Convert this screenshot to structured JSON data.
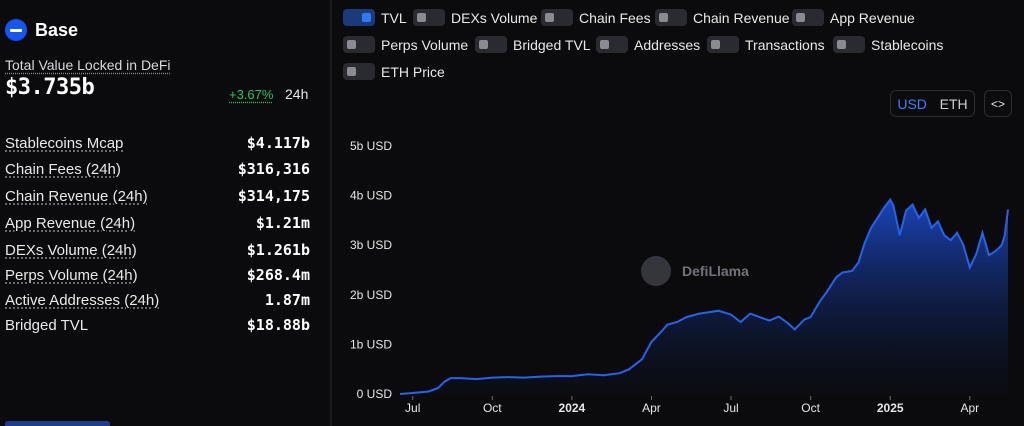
{
  "chain": {
    "name": "Base",
    "logo_icon": "base-logo-icon"
  },
  "tvl": {
    "label": "Total Value Locked in DeFi",
    "value": "$3.735b",
    "change": "+3.67%",
    "period": "24h"
  },
  "stats": [
    {
      "label": "Stablecoins Mcap",
      "value": "$4.117b"
    },
    {
      "label": "Chain Fees (24h)",
      "value": "$316,316"
    },
    {
      "label": "Chain Revenue (24h)",
      "value": "$314,175"
    },
    {
      "label": "App Revenue (24h)",
      "value": "$1.21m"
    },
    {
      "label": "DEXs Volume (24h)",
      "value": "$1.261b"
    },
    {
      "label": "Perps Volume (24h)",
      "value": "$268.4m"
    },
    {
      "label": "Active Addresses (24h)",
      "value": "1.87m"
    },
    {
      "label": "Bridged TVL",
      "value": "$18.88b"
    }
  ],
  "toggles": [
    {
      "label": "TVL",
      "on": true
    },
    {
      "label": "DEXs Volume",
      "on": false
    },
    {
      "label": "Chain Fees",
      "on": false
    },
    {
      "label": "Chain Revenue",
      "on": false
    },
    {
      "label": "App Revenue",
      "on": false
    },
    {
      "label": "Perps Volume",
      "on": false
    },
    {
      "label": "Bridged TVL",
      "on": false
    },
    {
      "label": "Addresses",
      "on": false
    },
    {
      "label": "Transactions",
      "on": false
    },
    {
      "label": "Stablecoins",
      "on": false
    },
    {
      "label": "ETH Price",
      "on": false
    }
  ],
  "currency": {
    "options": [
      "USD",
      "ETH"
    ],
    "selected": "USD"
  },
  "embed_label": "<>",
  "watermark": "DefiLlama",
  "colors": {
    "accent": "#2f7af7",
    "positive": "#23c55e",
    "line": "#2563eb"
  },
  "chart_data": {
    "type": "area",
    "series": [
      {
        "values": [
          [
            2023.46,
            0
          ],
          [
            2023.5,
            0.02
          ],
          [
            2023.55,
            0.05
          ],
          [
            2023.58,
            0.12
          ],
          [
            2023.6,
            0.25
          ],
          [
            2023.62,
            0.32
          ],
          [
            2023.65,
            0.32
          ],
          [
            2023.7,
            0.3
          ],
          [
            2023.75,
            0.33
          ],
          [
            2023.8,
            0.34
          ],
          [
            2023.85,
            0.33
          ],
          [
            2023.9,
            0.35
          ],
          [
            2023.95,
            0.36
          ],
          [
            2024.0,
            0.36
          ],
          [
            2024.05,
            0.4
          ],
          [
            2024.1,
            0.38
          ],
          [
            2024.15,
            0.42
          ],
          [
            2024.18,
            0.5
          ],
          [
            2024.22,
            0.7
          ],
          [
            2024.25,
            1.05
          ],
          [
            2024.28,
            1.25
          ],
          [
            2024.3,
            1.4
          ],
          [
            2024.33,
            1.45
          ],
          [
            2024.36,
            1.55
          ],
          [
            2024.4,
            1.62
          ],
          [
            2024.43,
            1.65
          ],
          [
            2024.46,
            1.68
          ],
          [
            2024.5,
            1.6
          ],
          [
            2024.53,
            1.45
          ],
          [
            2024.56,
            1.62
          ],
          [
            2024.59,
            1.55
          ],
          [
            2024.62,
            1.48
          ],
          [
            2024.65,
            1.56
          ],
          [
            2024.68,
            1.42
          ],
          [
            2024.7,
            1.3
          ],
          [
            2024.73,
            1.5
          ],
          [
            2024.75,
            1.55
          ],
          [
            2024.78,
            1.88
          ],
          [
            2024.8,
            2.05
          ],
          [
            2024.83,
            2.35
          ],
          [
            2024.85,
            2.45
          ],
          [
            2024.88,
            2.48
          ],
          [
            2024.9,
            2.65
          ],
          [
            2024.92,
            3.05
          ],
          [
            2024.94,
            3.35
          ],
          [
            2024.96,
            3.55
          ],
          [
            2024.98,
            3.75
          ],
          [
            2025.0,
            3.92
          ],
          [
            2025.01,
            3.8
          ],
          [
            2025.03,
            3.2
          ],
          [
            2025.05,
            3.7
          ],
          [
            2025.07,
            3.82
          ],
          [
            2025.09,
            3.55
          ],
          [
            2025.11,
            3.72
          ],
          [
            2025.13,
            3.35
          ],
          [
            2025.15,
            3.48
          ],
          [
            2025.17,
            3.2
          ],
          [
            2025.19,
            3.1
          ],
          [
            2025.21,
            3.25
          ],
          [
            2025.23,
            3.0
          ],
          [
            2025.25,
            2.55
          ],
          [
            2025.27,
            2.82
          ],
          [
            2025.29,
            3.25
          ],
          [
            2025.31,
            2.8
          ],
          [
            2025.33,
            2.88
          ],
          [
            2025.35,
            3.0
          ],
          [
            2025.36,
            3.2
          ],
          [
            2025.37,
            3.72
          ]
        ]
      }
    ],
    "y_ticks": [
      "0 USD",
      "1b USD",
      "2b USD",
      "3b USD",
      "4b USD",
      "5b USD"
    ],
    "x_ticks": [
      {
        "label": "Jul",
        "at": 2023.5,
        "bold": false
      },
      {
        "label": "Oct",
        "at": 2023.75,
        "bold": false
      },
      {
        "label": "2024",
        "at": 2024.0,
        "bold": true
      },
      {
        "label": "Apr",
        "at": 2024.25,
        "bold": false
      },
      {
        "label": "Jul",
        "at": 2024.5,
        "bold": false
      },
      {
        "label": "Oct",
        "at": 2024.75,
        "bold": false
      },
      {
        "label": "2025",
        "at": 2025.0,
        "bold": true
      },
      {
        "label": "Apr",
        "at": 2025.25,
        "bold": false
      }
    ],
    "ylim": [
      0,
      5
    ],
    "xlim": [
      2023.46,
      2025.37
    ],
    "grid": false,
    "units": "billions USD"
  }
}
